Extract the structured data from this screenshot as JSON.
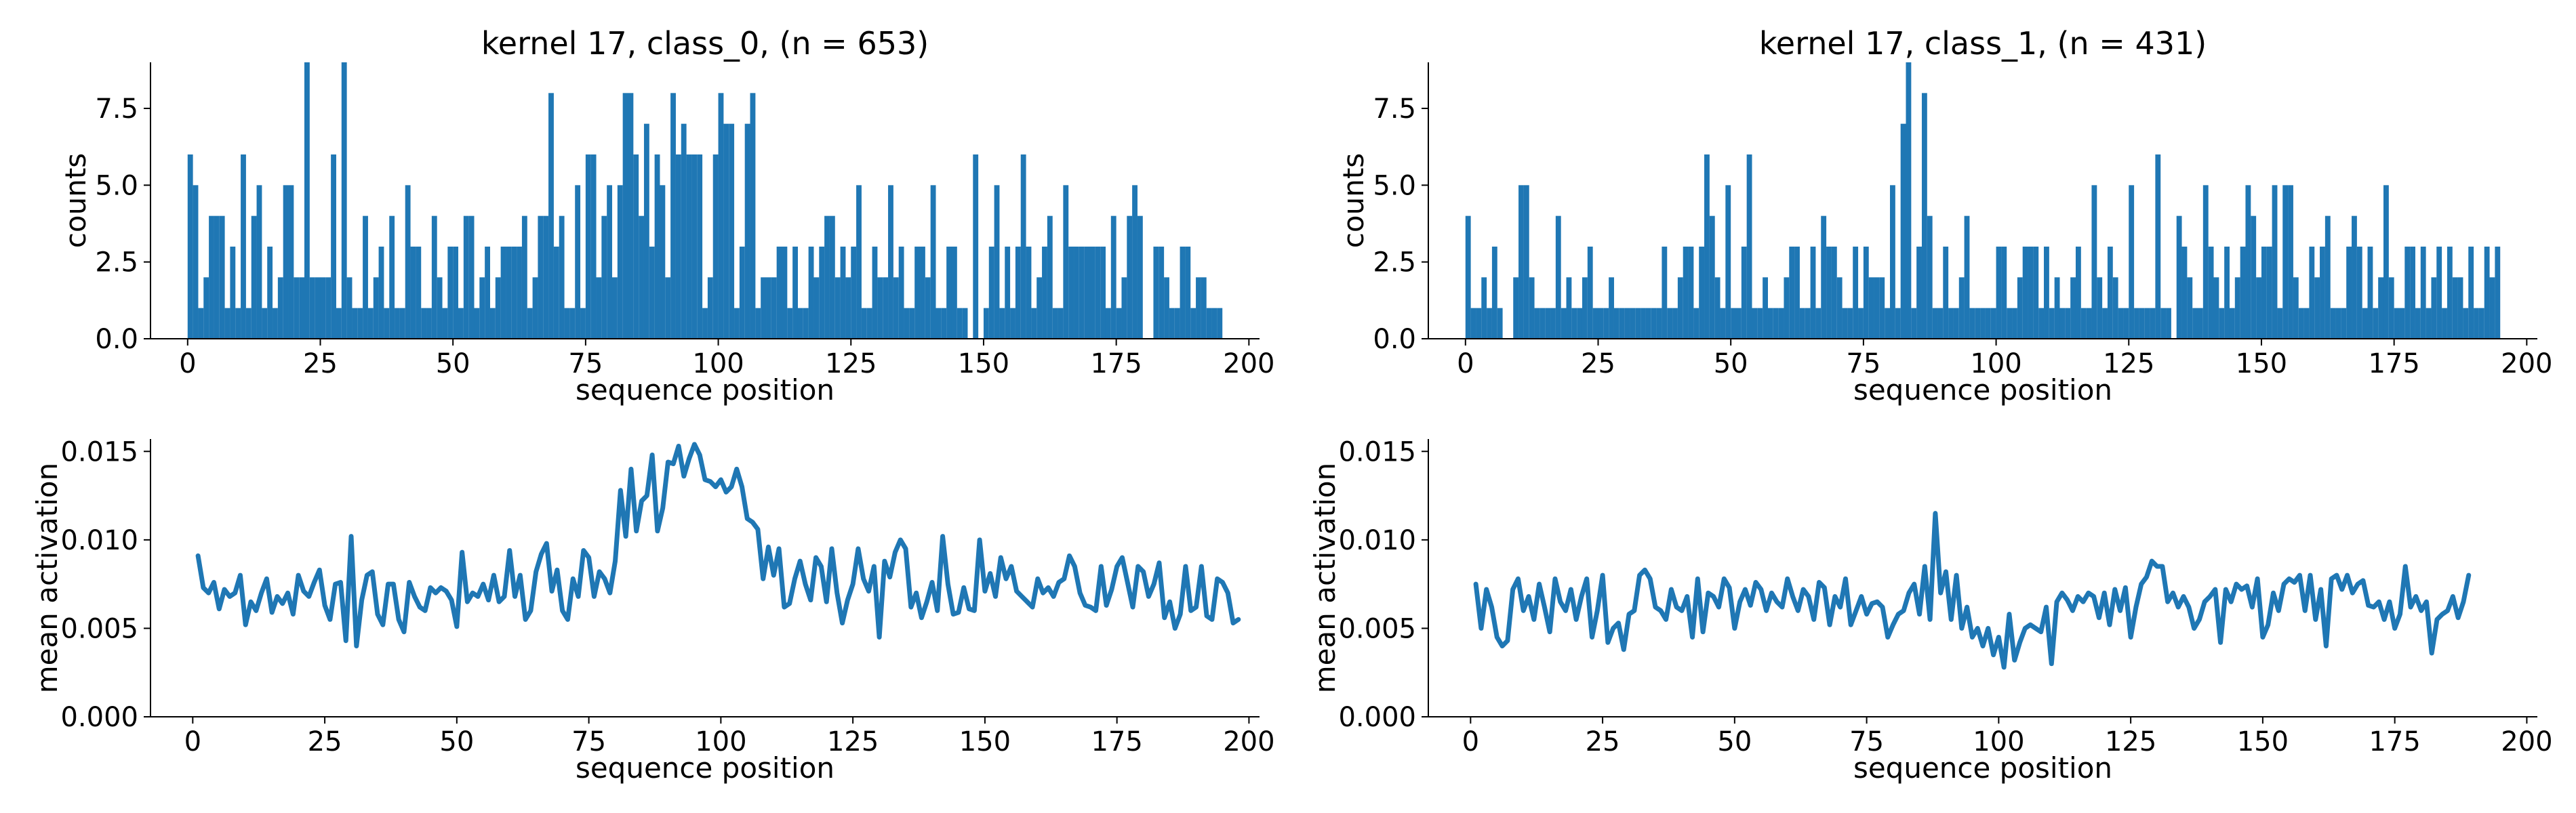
{
  "colors": {
    "series": "#1f77b4",
    "axis": "#000000"
  },
  "chart_data": [
    {
      "type": "bar",
      "title": "kernel 17, class_0, (n = 653)",
      "xlabel": "sequence position",
      "ylabel": "counts",
      "xlim": [
        -7,
        202
      ],
      "ylim": [
        0,
        9
      ],
      "xticks": [
        0,
        25,
        50,
        75,
        100,
        125,
        150,
        175,
        200
      ],
      "yticks": [
        0.0,
        2.5,
        5.0,
        7.5
      ],
      "ytick_labels": [
        "0.0",
        "2.5",
        "5.0",
        "7.5"
      ],
      "x_start": 0,
      "values": [
        6,
        5,
        1,
        2,
        4,
        4,
        4,
        1,
        3,
        1,
        6,
        1,
        4,
        5,
        1,
        3,
        1,
        2,
        5,
        5,
        2,
        2,
        9,
        2,
        2,
        2,
        2,
        6,
        1,
        9,
        2,
        1,
        1,
        4,
        1,
        2,
        3,
        1,
        4,
        1,
        1,
        5,
        3,
        3,
        1,
        1,
        4,
        2,
        1,
        3,
        3,
        1,
        4,
        4,
        1,
        2,
        3,
        1,
        2,
        3,
        3,
        3,
        3,
        4,
        1,
        2,
        4,
        4,
        8,
        3,
        4,
        1,
        1,
        5,
        1,
        6,
        6,
        2,
        4,
        5,
        2,
        5,
        8,
        8,
        6,
        4,
        7,
        3,
        6,
        5,
        2,
        8,
        6,
        7,
        6,
        6,
        6,
        1,
        2,
        6,
        8,
        7,
        7,
        1,
        3,
        7,
        8,
        1,
        2,
        2,
        2,
        3,
        3,
        1,
        3,
        1,
        1,
        3,
        2,
        3,
        4,
        4,
        2,
        3,
        2,
        3,
        5,
        1,
        1,
        3,
        2,
        2,
        5,
        2,
        3,
        1,
        1,
        3,
        3,
        2,
        5,
        1,
        1,
        3,
        3,
        1,
        1,
        0,
        6,
        0,
        1,
        3,
        5,
        1,
        3,
        1,
        3,
        6,
        3,
        1,
        2,
        3,
        4,
        1,
        1,
        5,
        3,
        3,
        3,
        3,
        3,
        3,
        3,
        1,
        4,
        1,
        2,
        4,
        5,
        4,
        0,
        0,
        3,
        3,
        2,
        1,
        1,
        3,
        3,
        1,
        2,
        2,
        1,
        1,
        1
      ]
    },
    {
      "type": "bar",
      "title": "kernel 17, class_1, (n = 431)",
      "xlabel": "sequence position",
      "ylabel": "counts",
      "xlim": [
        -7,
        202
      ],
      "ylim": [
        0,
        9
      ],
      "xticks": [
        0,
        25,
        50,
        75,
        100,
        125,
        150,
        175,
        200
      ],
      "yticks": [
        0.0,
        2.5,
        5.0,
        7.5
      ],
      "ytick_labels": [
        "0.0",
        "2.5",
        "5.0",
        "7.5"
      ],
      "x_start": 0,
      "values": [
        4,
        1,
        1,
        2,
        1,
        3,
        1,
        0,
        0,
        2,
        5,
        5,
        2,
        1,
        1,
        1,
        1,
        4,
        1,
        2,
        1,
        1,
        2,
        3,
        1,
        1,
        1,
        2,
        1,
        1,
        1,
        1,
        1,
        1,
        1,
        1,
        1,
        3,
        1,
        1,
        2,
        3,
        3,
        1,
        3,
        6,
        4,
        2,
        1,
        5,
        1,
        1,
        3,
        6,
        1,
        1,
        2,
        1,
        1,
        1,
        2,
        3,
        3,
        1,
        1,
        3,
        1,
        4,
        3,
        3,
        2,
        1,
        1,
        3,
        1,
        3,
        2,
        2,
        2,
        1,
        5,
        1,
        7,
        9,
        1,
        3,
        8,
        4,
        1,
        1,
        3,
        1,
        1,
        2,
        4,
        1,
        1,
        1,
        1,
        1,
        3,
        3,
        1,
        1,
        2,
        3,
        3,
        3,
        1,
        3,
        1,
        2,
        1,
        1,
        2,
        3,
        1,
        1,
        5,
        2,
        1,
        3,
        2,
        1,
        1,
        5,
        1,
        1,
        1,
        1,
        6,
        1,
        1,
        0,
        4,
        3,
        2,
        1,
        1,
        5,
        3,
        2,
        1,
        3,
        1,
        2,
        3,
        5,
        4,
        2,
        3,
        3,
        5,
        1,
        5,
        5,
        2,
        1,
        1,
        3,
        2,
        3,
        4,
        1,
        1,
        1,
        3,
        4,
        3,
        1,
        3,
        1,
        2,
        5,
        2,
        1,
        1,
        3,
        3,
        1,
        3,
        1,
        2,
        3,
        1,
        3,
        2,
        2,
        1,
        3,
        1,
        1,
        3,
        2,
        3
      ]
    },
    {
      "type": "line",
      "xlabel": "sequence position",
      "ylabel": "mean activation",
      "xlim": [
        -8,
        202
      ],
      "ylim": [
        0,
        0.0157
      ],
      "xticks": [
        0,
        25,
        50,
        75,
        100,
        125,
        150,
        175,
        200
      ],
      "yticks": [
        0.0,
        0.005,
        0.01,
        0.015
      ],
      "ytick_labels": [
        "0.000",
        "0.005",
        "0.010",
        "0.015"
      ],
      "x_start": 1,
      "values": [
        0.0091,
        0.0073,
        0.007,
        0.0076,
        0.0061,
        0.0072,
        0.0068,
        0.007,
        0.008,
        0.0052,
        0.0065,
        0.006,
        0.007,
        0.0078,
        0.0059,
        0.0068,
        0.0064,
        0.007,
        0.0058,
        0.008,
        0.0071,
        0.0068,
        0.0076,
        0.0083,
        0.0063,
        0.0055,
        0.0075,
        0.0076,
        0.0043,
        0.0102,
        0.004,
        0.0066,
        0.008,
        0.0082,
        0.0058,
        0.0052,
        0.0075,
        0.0075,
        0.0055,
        0.0048,
        0.0076,
        0.0068,
        0.0062,
        0.006,
        0.0073,
        0.007,
        0.0073,
        0.0071,
        0.0066,
        0.0051,
        0.0093,
        0.0065,
        0.007,
        0.0068,
        0.0075,
        0.0066,
        0.008,
        0.0065,
        0.0068,
        0.0094,
        0.0068,
        0.008,
        0.0055,
        0.006,
        0.0082,
        0.0092,
        0.0098,
        0.0071,
        0.0083,
        0.006,
        0.0055,
        0.0078,
        0.0068,
        0.0094,
        0.009,
        0.0068,
        0.0082,
        0.0078,
        0.007,
        0.0088,
        0.0128,
        0.0102,
        0.014,
        0.0105,
        0.0122,
        0.0125,
        0.0148,
        0.0105,
        0.0118,
        0.0144,
        0.0143,
        0.0153,
        0.0136,
        0.0146,
        0.0154,
        0.0148,
        0.0134,
        0.0133,
        0.013,
        0.0134,
        0.0127,
        0.013,
        0.014,
        0.013,
        0.0112,
        0.011,
        0.0106,
        0.0078,
        0.0096,
        0.008,
        0.0095,
        0.0062,
        0.0064,
        0.0078,
        0.0088,
        0.0075,
        0.0066,
        0.009,
        0.0085,
        0.0065,
        0.0095,
        0.007,
        0.0053,
        0.0066,
        0.0075,
        0.0095,
        0.0078,
        0.0071,
        0.0085,
        0.0045,
        0.0088,
        0.0079,
        0.0093,
        0.01,
        0.0095,
        0.0062,
        0.007,
        0.0056,
        0.0065,
        0.0076,
        0.006,
        0.0102,
        0.0075,
        0.0058,
        0.0059,
        0.0073,
        0.0061,
        0.006,
        0.01,
        0.0071,
        0.0081,
        0.0068,
        0.009,
        0.0078,
        0.0085,
        0.0071,
        0.0068,
        0.0065,
        0.0062,
        0.0078,
        0.007,
        0.0073,
        0.0068,
        0.0076,
        0.0078,
        0.0091,
        0.0085,
        0.007,
        0.0063,
        0.0062,
        0.006,
        0.0085,
        0.0063,
        0.0072,
        0.0085,
        0.009,
        0.0076,
        0.0062,
        0.0085,
        0.0082,
        0.0068,
        0.0075,
        0.0087,
        0.0056,
        0.0065,
        0.005,
        0.0058,
        0.0085,
        0.006,
        0.0062,
        0.0085,
        0.0057,
        0.0055,
        0.0078,
        0.0076,
        0.007,
        0.0053,
        0.0055
      ]
    },
    {
      "type": "line",
      "xlabel": "sequence position",
      "ylabel": "mean activation",
      "xlim": [
        -8,
        202
      ],
      "ylim": [
        0,
        0.0157
      ],
      "xticks": [
        0,
        25,
        50,
        75,
        100,
        125,
        150,
        175,
        200
      ],
      "yticks": [
        0.0,
        0.005,
        0.01,
        0.015
      ],
      "ytick_labels": [
        "0.000",
        "0.005",
        "0.010",
        "0.015"
      ],
      "x_start": 1,
      "values": [
        0.0075,
        0.005,
        0.0072,
        0.0062,
        0.0045,
        0.004,
        0.0043,
        0.0072,
        0.0078,
        0.006,
        0.0068,
        0.0055,
        0.0075,
        0.0062,
        0.0048,
        0.0078,
        0.0065,
        0.006,
        0.0072,
        0.0055,
        0.0068,
        0.0078,
        0.0045,
        0.006,
        0.008,
        0.0042,
        0.005,
        0.0053,
        0.0038,
        0.0058,
        0.006,
        0.008,
        0.0083,
        0.0078,
        0.0062,
        0.006,
        0.0055,
        0.0072,
        0.0062,
        0.006,
        0.0068,
        0.0045,
        0.0078,
        0.0048,
        0.007,
        0.0068,
        0.0062,
        0.0078,
        0.0073,
        0.005,
        0.0065,
        0.0072,
        0.0063,
        0.0076,
        0.0072,
        0.006,
        0.007,
        0.0065,
        0.0062,
        0.0078,
        0.0068,
        0.006,
        0.0072,
        0.0068,
        0.0055,
        0.0076,
        0.0073,
        0.0052,
        0.0068,
        0.0062,
        0.0078,
        0.0052,
        0.006,
        0.0068,
        0.0058,
        0.0064,
        0.0065,
        0.0062,
        0.0045,
        0.0052,
        0.0058,
        0.006,
        0.007,
        0.0075,
        0.0058,
        0.0085,
        0.0055,
        0.0115,
        0.007,
        0.0082,
        0.0055,
        0.008,
        0.005,
        0.0062,
        0.0045,
        0.005,
        0.004,
        0.005,
        0.0035,
        0.0045,
        0.0028,
        0.0058,
        0.0032,
        0.0042,
        0.005,
        0.0052,
        0.005,
        0.0048,
        0.0062,
        0.003,
        0.0065,
        0.007,
        0.0066,
        0.006,
        0.0068,
        0.0065,
        0.007,
        0.0068,
        0.0056,
        0.007,
        0.0052,
        0.0072,
        0.006,
        0.0073,
        0.0045,
        0.0062,
        0.0075,
        0.0079,
        0.0088,
        0.0085,
        0.0085,
        0.0065,
        0.007,
        0.0062,
        0.0068,
        0.0062,
        0.005,
        0.0055,
        0.0065,
        0.0068,
        0.0072,
        0.0042,
        0.0072,
        0.0065,
        0.0075,
        0.0072,
        0.0074,
        0.0062,
        0.0078,
        0.0045,
        0.0052,
        0.007,
        0.006,
        0.0075,
        0.0078,
        0.0076,
        0.008,
        0.006,
        0.008,
        0.0055,
        0.0072,
        0.004,
        0.0078,
        0.008,
        0.0072,
        0.008,
        0.007,
        0.0075,
        0.0077,
        0.0063,
        0.0062,
        0.0065,
        0.0055,
        0.0065,
        0.005,
        0.0058,
        0.0085,
        0.0062,
        0.0068,
        0.006,
        0.0065,
        0.0036,
        0.0055,
        0.0058,
        0.006,
        0.0068,
        0.0056,
        0.0065,
        0.008
      ]
    }
  ]
}
